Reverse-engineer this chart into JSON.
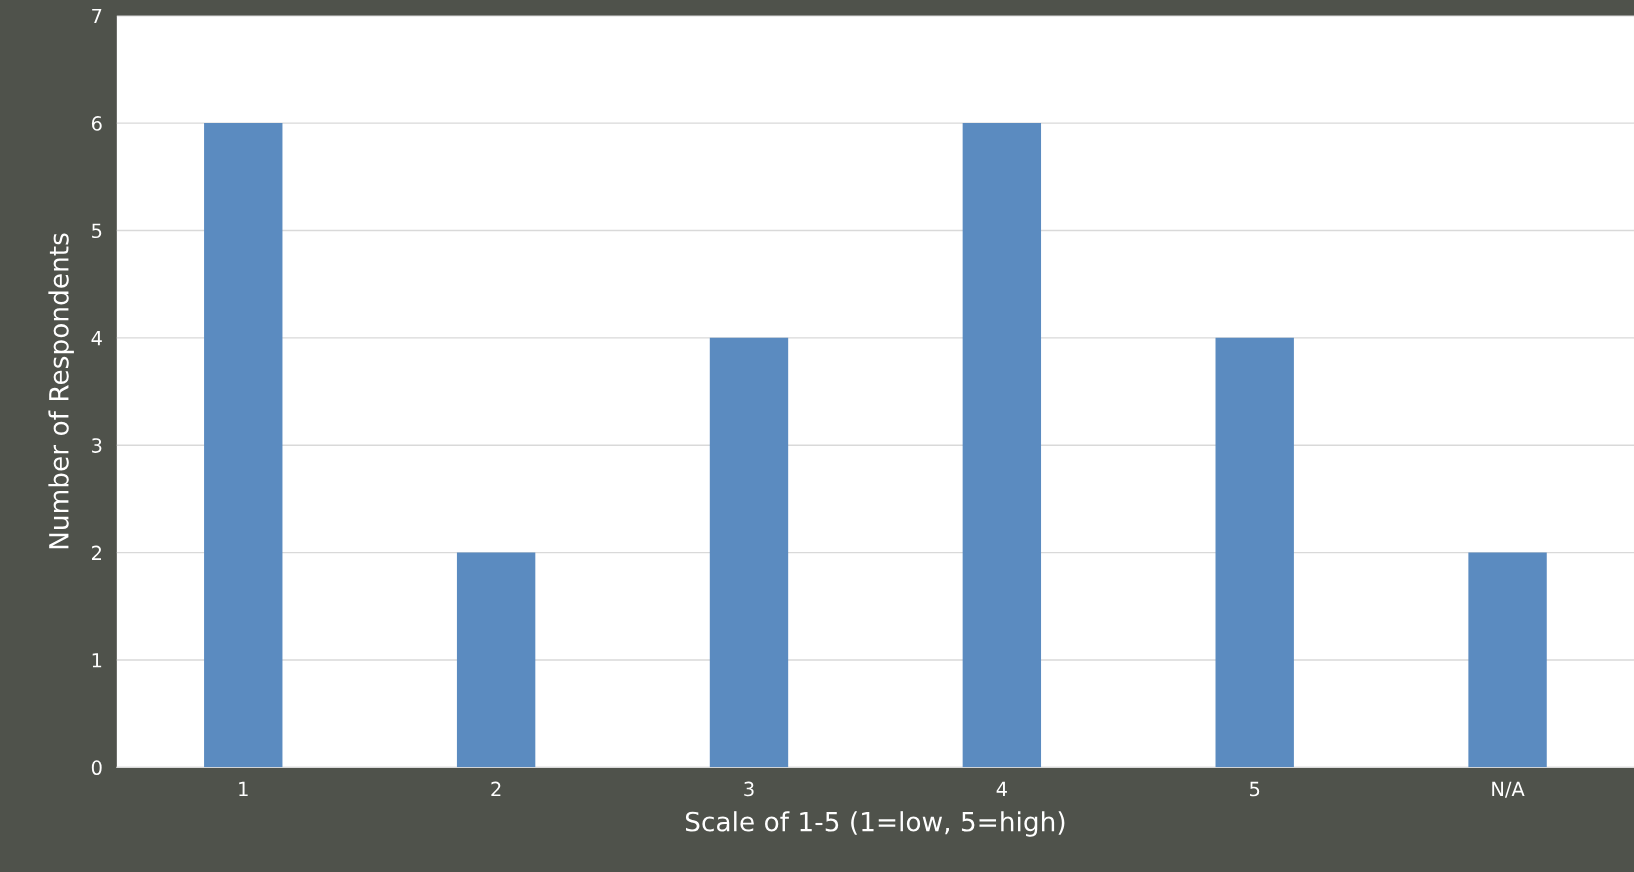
{
  "chart_data": {
    "type": "bar",
    "xlabel": "Scale of 1-5 (1=low, 5=high)",
    "ylabel": "Number of Respondents",
    "categories": [
      "1",
      "2",
      "3",
      "4",
      "5",
      "N/A"
    ],
    "values": [
      6,
      2,
      4,
      6,
      4,
      2
    ],
    "color": "#5b8bc0",
    "ylim": [
      0,
      7
    ],
    "yticks": [
      0,
      1,
      2,
      3,
      4,
      5,
      6,
      7
    ],
    "grid": "y"
  }
}
